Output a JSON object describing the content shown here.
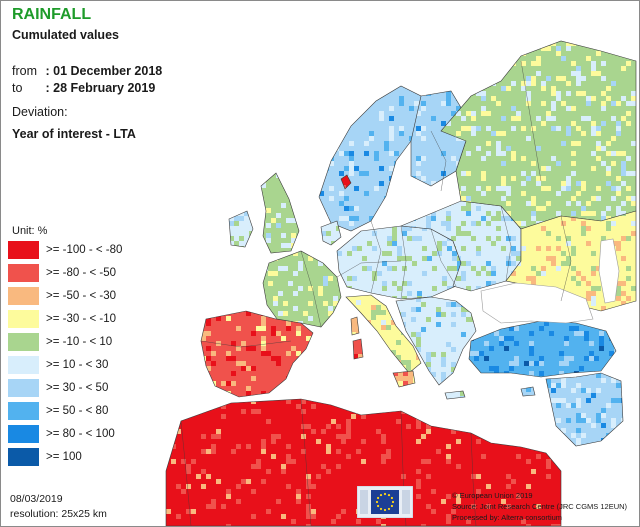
{
  "header": {
    "title": "RAINFALL",
    "subtitle": "Cumulated values",
    "from_label": "from",
    "from_value": ": 01 December 2018",
    "to_label": "to",
    "to_value": ": 28 February 2019",
    "deviation_label": "Deviation:",
    "deviation_value": "Year of interest - LTA"
  },
  "legend": {
    "unit": "Unit:  %",
    "classes": [
      {
        "label": ">= -100 - < -80",
        "color": "#e8101a"
      },
      {
        "label": ">= -80 - < -50",
        "color": "#f0524c"
      },
      {
        "label": ">= -50 - < -30",
        "color": "#f9b97f"
      },
      {
        "label": ">= -30 - < -10",
        "color": "#fdfb9c"
      },
      {
        "label": ">= -10 - < 10",
        "color": "#a9d58f"
      },
      {
        "label": ">= 10 - < 30",
        "color": "#d8eefc"
      },
      {
        "label": ">= 30 - < 50",
        "color": "#a7d5f6"
      },
      {
        "label": ">= 50 - < 80",
        "color": "#52b2ef"
      },
      {
        "label": ">= 80 - < 100",
        "color": "#1989e3"
      },
      {
        "label": ">= 100",
        "color": "#0b5aa8"
      }
    ]
  },
  "footer": {
    "date": "08/03/2019",
    "resolution": "resolution:  25x25 km",
    "credit_1": "© European Union 2019",
    "credit_2": "Source: Joint Research Centre (JRC CGMS 12EUN)",
    "credit_3": "Processed by: Alterra consortium"
  },
  "map": {
    "sea_color": "#ffffff",
    "border_color": "#3a3a3a"
  }
}
